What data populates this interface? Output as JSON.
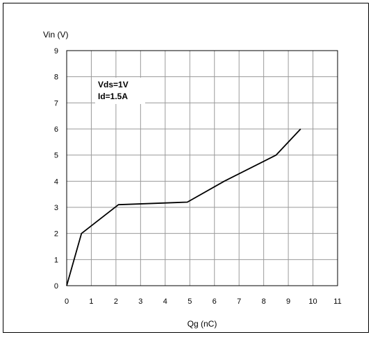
{
  "chart_data": {
    "type": "line",
    "xlabel": "Qg (nC)",
    "ylabel": "Vin (V)",
    "xlim": [
      0,
      11
    ],
    "ylim": [
      0,
      9
    ],
    "xticks": [
      "0",
      "1",
      "2",
      "3",
      "4",
      "5",
      "6",
      "7",
      "8",
      "9",
      "10",
      "11"
    ],
    "yticks": [
      "0",
      "1",
      "2",
      "3",
      "4",
      "5",
      "6",
      "7",
      "8",
      "9"
    ],
    "grid": true,
    "annotations": [
      "Vds=1V",
      "Id=1.5A"
    ],
    "series": [
      {
        "color": "#000000",
        "x": [
          0,
          0.6,
          2.1,
          4.9,
          6.4,
          8.5,
          9.5
        ],
        "y": [
          0,
          2.0,
          3.1,
          3.2,
          4.0,
          5.0,
          6.0
        ]
      }
    ]
  }
}
